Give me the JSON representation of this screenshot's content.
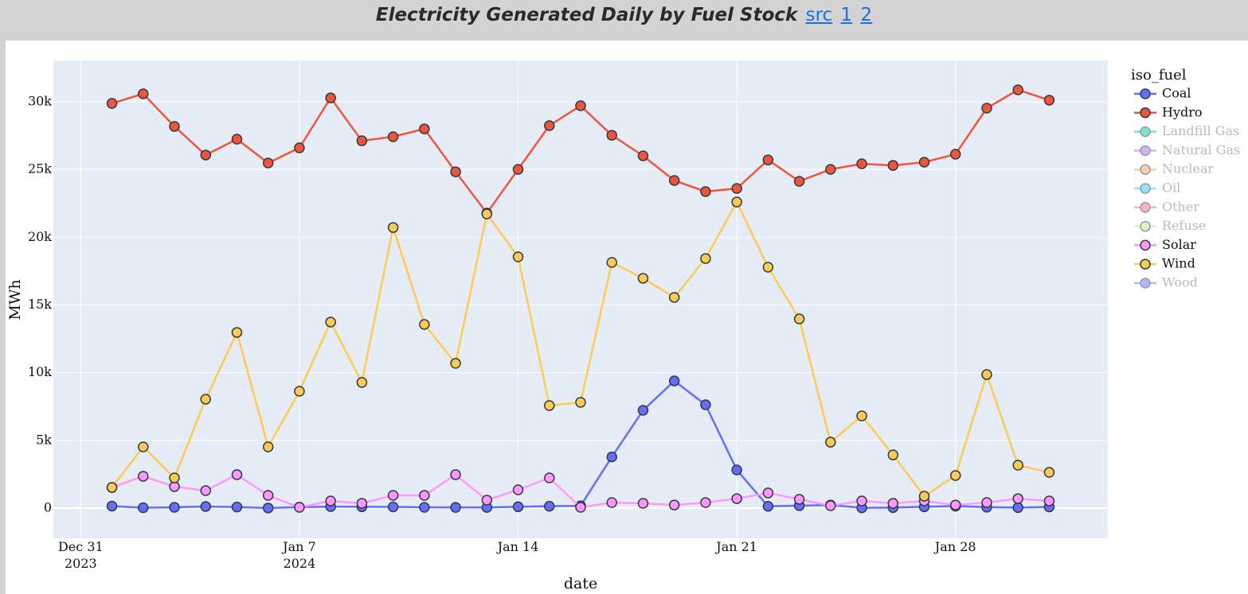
{
  "header": {
    "title": "Electricity Generated Daily by Fuel Stock",
    "links": [
      "src",
      "1",
      "2"
    ]
  },
  "chart_data": {
    "type": "line",
    "xlabel": "date",
    "ylabel": "MWh",
    "legend_title": "iso_fuel",
    "legend": "right",
    "grid": true,
    "x": [
      "2024-01-01",
      "2024-01-02",
      "2024-01-03",
      "2024-01-04",
      "2024-01-05",
      "2024-01-06",
      "2024-01-07",
      "2024-01-08",
      "2024-01-09",
      "2024-01-10",
      "2024-01-11",
      "2024-01-12",
      "2024-01-13",
      "2024-01-14",
      "2024-01-15",
      "2024-01-16",
      "2024-01-17",
      "2024-01-18",
      "2024-01-19",
      "2024-01-20",
      "2024-01-21",
      "2024-01-22",
      "2024-01-23",
      "2024-01-24",
      "2024-01-25",
      "2024-01-26",
      "2024-01-27",
      "2024-01-28",
      "2024-01-29",
      "2024-01-30",
      "2024-01-31"
    ],
    "xlim": [
      "2023-12-30T03:00:00Z",
      "2024-02-01T21:00:00Z"
    ],
    "xticks": [
      {
        "value": "2023-12-31",
        "label": "Dec 31\n2023"
      },
      {
        "value": "2024-01-07",
        "label": "Jan 7\n2024"
      },
      {
        "value": "2024-01-14",
        "label": "Jan 14"
      },
      {
        "value": "2024-01-21",
        "label": "Jan 21"
      },
      {
        "value": "2024-01-28",
        "label": "Jan 28"
      }
    ],
    "ylim": [
      -2231,
      33053
    ],
    "yticks": [
      0,
      {
        "value": 5000,
        "label": "5k"
      },
      {
        "value": 10000,
        "label": "10k"
      },
      {
        "value": 15000,
        "label": "15k"
      },
      {
        "value": 20000,
        "label": "20k"
      },
      {
        "value": 25000,
        "label": "25k"
      },
      {
        "value": 30000,
        "label": "30k"
      }
    ],
    "series": [
      {
        "name": "Coal",
        "color": "#636efa",
        "values": [
          150,
          30,
          60,
          120,
          80,
          10,
          70,
          110,
          100,
          90,
          60,
          50,
          50,
          100,
          140,
          170,
          3780,
          7220,
          9390,
          7630,
          2820,
          130,
          180,
          230,
          20,
          40,
          100,
          150,
          70,
          40,
          90
        ]
      },
      {
        "name": "Hydro",
        "color": "#ef553b",
        "values": [
          29880,
          30590,
          28180,
          26070,
          27240,
          25480,
          26600,
          30290,
          27120,
          27420,
          28000,
          24830,
          21780,
          25010,
          28240,
          29710,
          27530,
          26010,
          24190,
          23370,
          23600,
          25710,
          24130,
          25010,
          25420,
          25300,
          25540,
          26130,
          29530,
          30880,
          30120
        ]
      },
      {
        "name": "Landfill Gas",
        "color": "#00cc96",
        "visible": false
      },
      {
        "name": "Natural Gas",
        "color": "#ab63fa",
        "visible": false
      },
      {
        "name": "Nuclear",
        "color": "#ffa15a",
        "visible": false
      },
      {
        "name": "Oil",
        "color": "#19d3f3",
        "visible": false
      },
      {
        "name": "Other",
        "color": "#ff6692",
        "visible": false
      },
      {
        "name": "Refuse",
        "color": "#b6e880",
        "visible": false
      },
      {
        "name": "Solar",
        "color": "#ff97ff",
        "values": [
          1530,
          2350,
          1590,
          1290,
          2470,
          940,
          60,
          530,
          350,
          940,
          940,
          2470,
          590,
          1350,
          2230,
          60,
          410,
          350,
          230,
          410,
          700,
          1120,
          650,
          180,
          530,
          350,
          530,
          230,
          410,
          700,
          530
        ]
      },
      {
        "name": "Wind",
        "color": "#fecb52",
        "values": [
          1530,
          4520,
          2230,
          8040,
          12970,
          4520,
          8630,
          13740,
          9280,
          20720,
          13560,
          10690,
          21720,
          18550,
          7570,
          7810,
          18140,
          16970,
          15560,
          18430,
          22600,
          17790,
          13970,
          4870,
          6810,
          3930,
          880,
          2410,
          9860,
          3170,
          2640
        ]
      },
      {
        "name": "Wood",
        "color": "#636efa",
        "visible": false
      }
    ]
  }
}
